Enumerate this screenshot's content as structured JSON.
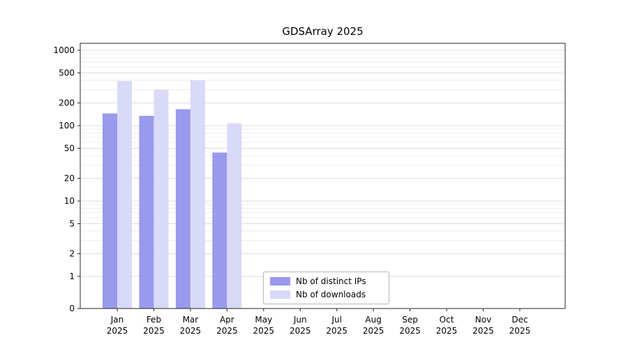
{
  "chart_data": {
    "type": "bar",
    "title": "GDSArray 2025",
    "categories": [
      "Jan 2025",
      "Feb 2025",
      "Mar 2025",
      "Apr 2025",
      "May 2025",
      "Jun 2025",
      "Jul 2025",
      "Aug 2025",
      "Sep 2025",
      "Oct 2025",
      "Nov 2025",
      "Dec 2025"
    ],
    "series": [
      {
        "name": "Nb of distinct IPs",
        "color": "#9999ee",
        "values": [
          145,
          135,
          165,
          44,
          0,
          0,
          0,
          0,
          0,
          0,
          0,
          0
        ]
      },
      {
        "name": "Nb of downloads",
        "color": "#d9d9f8",
        "values": [
          390,
          300,
          400,
          107,
          0,
          0,
          0,
          0,
          0,
          0,
          0,
          0
        ]
      }
    ],
    "yscale": "symlog",
    "yticks": [
      0,
      1,
      2,
      5,
      10,
      20,
      50,
      100,
      200,
      500,
      1000
    ],
    "ylim": [
      0,
      1300
    ],
    "grid": true,
    "legend_position": "lower center",
    "colors": {
      "major_grid": "#dcdcdc",
      "minor_grid": "#ededed",
      "axis": "#262626"
    }
  }
}
